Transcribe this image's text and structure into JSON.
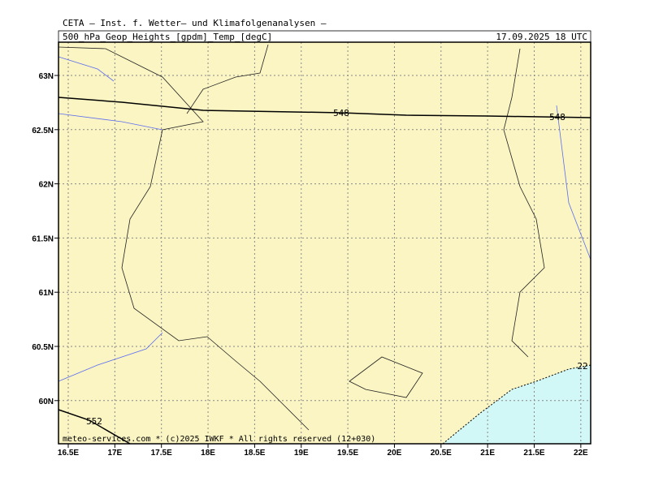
{
  "header": {
    "title": "CETA — Inst. f. Wetter— und Klimafolgenanalysen —",
    "subtitle": "500_hPa_Geop_Heights_[gpdm]_Temp_[degC]",
    "valid_time": "17.09.2025 18 UTC"
  },
  "axes": {
    "x_labels": [
      "16.5E",
      "17E",
      "17.5E",
      "18E",
      "18.5E",
      "19E",
      "19.5E",
      "20E",
      "20.5E",
      "21E",
      "21.5E",
      "22E"
    ],
    "y_labels": [
      "63N",
      "62.5N",
      "62N",
      "61.5N",
      "61N",
      "60.5N",
      "60N"
    ]
  },
  "contours": [
    {
      "label": "548"
    },
    {
      "label": "548"
    },
    {
      "label": "552"
    },
    {
      "label": "22"
    }
  ],
  "footer": "meteo-services.com * (c)2025 IWKF * All rights reserved (12+030)"
}
